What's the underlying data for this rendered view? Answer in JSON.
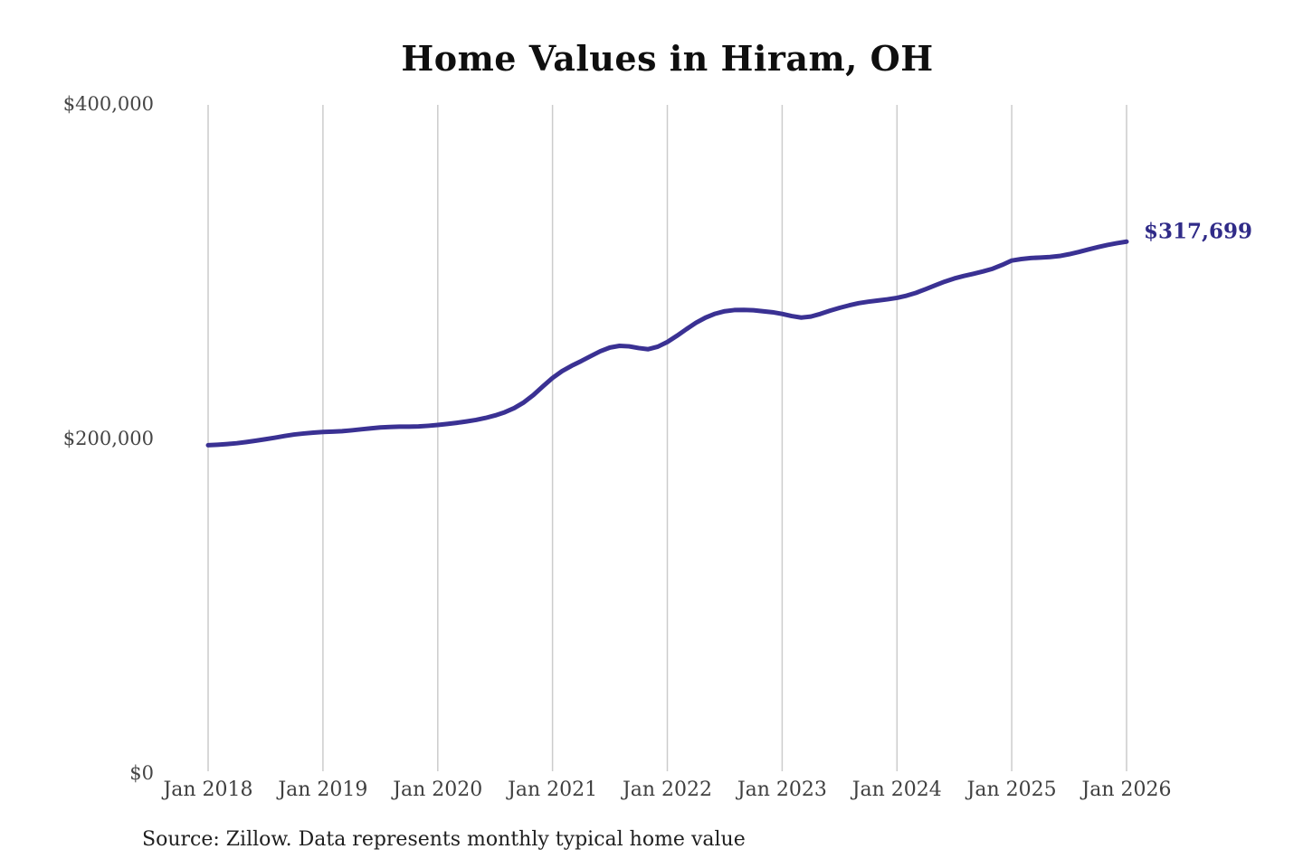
{
  "title": "Home Values in Hiram, OH",
  "source_note": "Source: Zillow. Data represents monthly typical home value",
  "end_label": "$317,699",
  "colors": {
    "line": "#3a3193",
    "end_label": "#302b88",
    "gridline": "#cccccc",
    "axis_text": "#454545",
    "title_text": "#0f0f0f",
    "source_text": "#1f1f1f",
    "background": "#ffffff"
  },
  "chart_data": {
    "type": "line",
    "title": "Home Values in Hiram, OH",
    "xlabel": "",
    "ylabel": "",
    "x_interval": "monthly",
    "x_start": "Jan 2018",
    "x_end": "Jan 2026",
    "x_tick_labels": [
      "Jan 2018",
      "Jan 2019",
      "Jan 2020",
      "Jan 2021",
      "Jan 2022",
      "Jan 2023",
      "Jan 2024",
      "Jan 2025",
      "Jan 2026"
    ],
    "y_ticks": [
      {
        "label": "$0",
        "value": 0
      },
      {
        "label": "$200,000",
        "value": 200000
      },
      {
        "label": "$400,000",
        "value": 400000
      }
    ],
    "ylim": [
      0,
      400000
    ],
    "grid": "vertical-only",
    "legend": "none",
    "end_value": 317699,
    "series": [
      {
        "name": "Monthly typical home value",
        "values": [
          196000,
          196300,
          196700,
          197200,
          197900,
          198700,
          199600,
          200500,
          201500,
          202400,
          203000,
          203500,
          203900,
          204100,
          204400,
          204900,
          205500,
          206100,
          206600,
          206900,
          207100,
          207100,
          207200,
          207600,
          208100,
          208700,
          209400,
          210200,
          211100,
          212300,
          213800,
          215700,
          218200,
          221600,
          226000,
          231200,
          236200,
          240300,
          243500,
          246300,
          249300,
          252200,
          254400,
          255400,
          255100,
          254100,
          253400,
          254900,
          257700,
          261400,
          265400,
          269200,
          272300,
          274600,
          276100,
          276800,
          276900,
          276700,
          276100,
          275500,
          274500,
          273200,
          272300,
          272900,
          274500,
          276400,
          278100,
          279600,
          280900,
          281800,
          282500,
          283200,
          284100,
          285400,
          287100,
          289300,
          291600,
          293800,
          295700,
          297200,
          298500,
          299900,
          301500,
          303800,
          306400,
          307300,
          307900,
          308200,
          308500,
          309100,
          310200,
          311500,
          313000,
          314400,
          315700,
          316800,
          317699
        ]
      }
    ]
  }
}
